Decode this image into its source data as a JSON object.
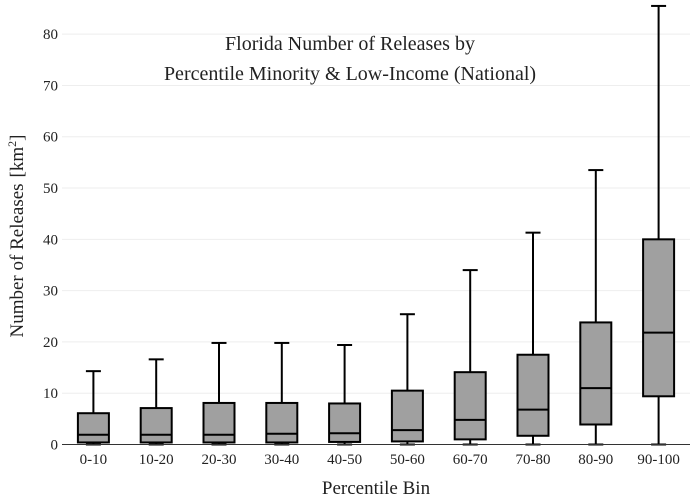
{
  "chart_data": {
    "type": "box",
    "title_lines": [
      "Florida Number of Releases by",
      "Percentile Minority & Low-Income (National)"
    ],
    "xlabel": "Percentile Bin",
    "ylabel_main": "Number of Releases",
    "ylabel_unit_open": "[km",
    "ylabel_unit_sup": "2",
    "ylabel_unit_close": "]",
    "ylim": [
      0,
      85
    ],
    "yticks": [
      0,
      10,
      20,
      30,
      40,
      50,
      60,
      70,
      80
    ],
    "grid": true,
    "box_color": "#a0a0a0",
    "line_color": "#000000",
    "categories": [
      "0-10",
      "10-20",
      "20-30",
      "30-40",
      "40-50",
      "50-60",
      "60-70",
      "70-80",
      "80-90",
      "90-100"
    ],
    "boxes": [
      {
        "min": 0,
        "q1": 0.4,
        "median": 1.9,
        "q3": 6.1,
        "max": 14.3
      },
      {
        "min": 0,
        "q1": 0.4,
        "median": 1.9,
        "q3": 7.1,
        "max": 16.6
      },
      {
        "min": 0,
        "q1": 0.4,
        "median": 1.9,
        "q3": 8.1,
        "max": 19.8
      },
      {
        "min": 0,
        "q1": 0.4,
        "median": 2.1,
        "q3": 8.1,
        "max": 19.8
      },
      {
        "min": 0,
        "q1": 0.5,
        "median": 2.2,
        "q3": 8.0,
        "max": 19.4
      },
      {
        "min": 0,
        "q1": 0.6,
        "median": 2.8,
        "q3": 10.5,
        "max": 25.4
      },
      {
        "min": 0,
        "q1": 1.0,
        "median": 4.8,
        "q3": 14.1,
        "max": 34.0
      },
      {
        "min": 0,
        "q1": 1.7,
        "median": 6.8,
        "q3": 17.5,
        "max": 41.3
      },
      {
        "min": 0,
        "q1": 3.9,
        "median": 11.0,
        "q3": 23.8,
        "max": 53.5
      },
      {
        "min": 0,
        "q1": 9.4,
        "median": 21.8,
        "q3": 40.0,
        "max": 85.5
      }
    ]
  }
}
